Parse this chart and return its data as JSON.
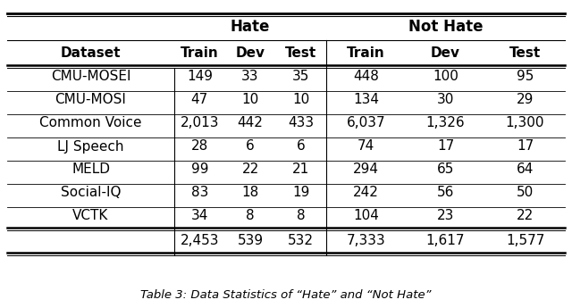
{
  "title": "Table 3: Data Statistics of “Hate” and “Not Hate”",
  "rows": [
    [
      "CMU-MOSEI",
      "149",
      "33",
      "35",
      "448",
      "100",
      "95"
    ],
    [
      "CMU-MOSI",
      "47",
      "10",
      "10",
      "134",
      "30",
      "29"
    ],
    [
      "Common Voice",
      "2,013",
      "442",
      "433",
      "6,037",
      "1,326",
      "1,300"
    ],
    [
      "LJ Speech",
      "28",
      "6",
      "6",
      "74",
      "17",
      "17"
    ],
    [
      "MELD",
      "99",
      "22",
      "21",
      "294",
      "65",
      "64"
    ],
    [
      "Social-IQ",
      "83",
      "18",
      "19",
      "242",
      "56",
      "50"
    ],
    [
      "VCTK",
      "34",
      "8",
      "8",
      "104",
      "23",
      "22"
    ]
  ],
  "totals": [
    "",
    "2,453",
    "539",
    "532",
    "7,333",
    "1,617",
    "1,577"
  ],
  "col_headers": [
    "Dataset",
    "Train",
    "Dev",
    "Test",
    "Train",
    "Dev",
    "Test"
  ],
  "group_headers": [
    "Hate",
    "Not Hate"
  ],
  "font_size": 11,
  "caption_fontsize": 9.5,
  "bg": "#ffffff"
}
